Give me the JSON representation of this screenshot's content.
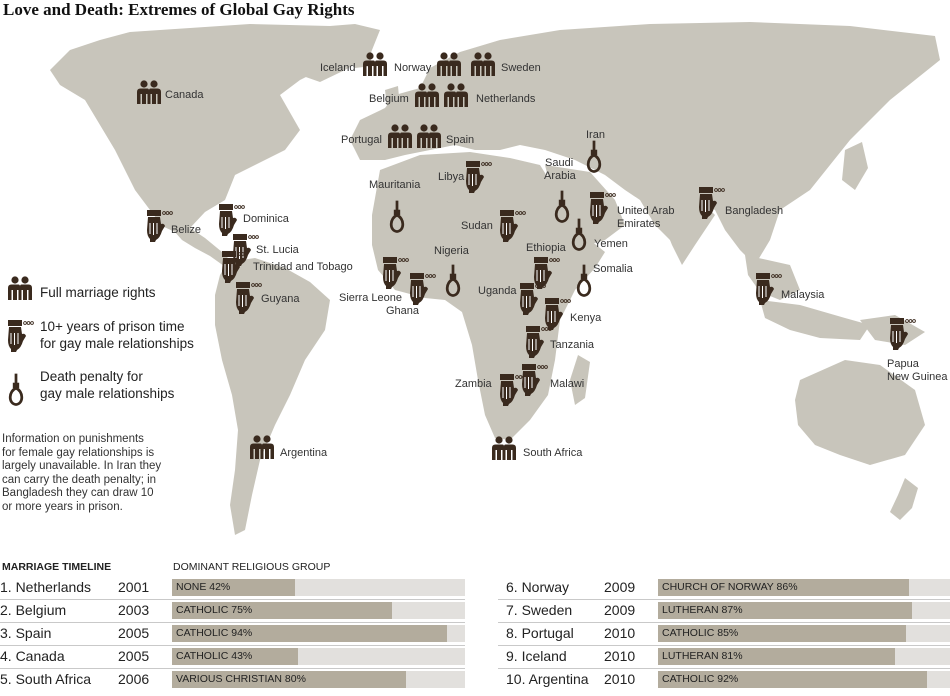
{
  "title": "Love and Death: Extremes of Global Gay Rights",
  "colors": {
    "land": "#c8c5bb",
    "icon": "#3a2a1e",
    "bar_fill": "#b3ac9d",
    "bar_track": "#e2e0dd"
  },
  "map": {
    "countries": [
      {
        "name": "Canada",
        "status": "marriage"
      },
      {
        "name": "Iceland",
        "status": "marriage"
      },
      {
        "name": "Norway",
        "status": "marriage"
      },
      {
        "name": "Sweden",
        "status": "marriage"
      },
      {
        "name": "Belgium",
        "status": "marriage"
      },
      {
        "name": "Netherlands",
        "status": "marriage"
      },
      {
        "name": "Portugal",
        "status": "marriage"
      },
      {
        "name": "Spain",
        "status": "marriage"
      },
      {
        "name": "Argentina",
        "status": "marriage"
      },
      {
        "name": "South Africa",
        "status": "marriage"
      },
      {
        "name": "Iran",
        "status": "death"
      },
      {
        "name": "Saudi Arabia",
        "status": "death"
      },
      {
        "name": "Mauritania",
        "status": "death"
      },
      {
        "name": "Yemen",
        "status": "death"
      },
      {
        "name": "Nigeria",
        "status": "death"
      },
      {
        "name": "Somalia",
        "status": "death"
      },
      {
        "name": "Libya",
        "status": "prison"
      },
      {
        "name": "United Arab Emirates",
        "status": "prison"
      },
      {
        "name": "Bangladesh",
        "status": "prison"
      },
      {
        "name": "Belize",
        "status": "prison"
      },
      {
        "name": "Dominica",
        "status": "prison"
      },
      {
        "name": "St. Lucia",
        "status": "prison"
      },
      {
        "name": "Trinidad and Tobago",
        "status": "prison"
      },
      {
        "name": "Guyana",
        "status": "prison"
      },
      {
        "name": "Sudan",
        "status": "prison"
      },
      {
        "name": "Ethiopia",
        "status": "prison"
      },
      {
        "name": "Sierra Leone",
        "status": "prison"
      },
      {
        "name": "Ghana",
        "status": "prison"
      },
      {
        "name": "Uganda",
        "status": "prison"
      },
      {
        "name": "Kenya",
        "status": "prison"
      },
      {
        "name": "Tanzania",
        "status": "prison"
      },
      {
        "name": "Zambia",
        "status": "prison"
      },
      {
        "name": "Malawi",
        "status": "prison"
      },
      {
        "name": "Malaysia",
        "status": "prison"
      },
      {
        "name": "Papua New Guinea",
        "status": "prison"
      }
    ],
    "labels": {
      "canada": "Canada",
      "iceland": "Iceland",
      "norway": "Norway",
      "sweden": "Sweden",
      "belgium": "Belgium",
      "netherlands": "Netherlands",
      "portugal": "Portugal",
      "spain": "Spain",
      "iran": "Iran",
      "saudi_1": "Saudi",
      "saudi_2": "Arabia",
      "mauritania": "Mauritania",
      "libya": "Libya",
      "uae_1": "United Arab",
      "uae_2": "Emirates",
      "bangladesh": "Bangladesh",
      "belize": "Belize",
      "dominica": "Dominica",
      "st_lucia": "St. Lucia",
      "trinidad": "Trinidad and Tobago",
      "guyana": "Guyana",
      "sudan": "Sudan",
      "yemen": "Yemen",
      "nigeria": "Nigeria",
      "ethiopia": "Ethiopia",
      "somalia": "Somalia",
      "sierra_leone": "Sierra Leone",
      "ghana": "Ghana",
      "uganda": "Uganda",
      "kenya": "Kenya",
      "tanzania": "Tanzania",
      "zambia": "Zambia",
      "malawi": "Malawi",
      "malaysia": "Malaysia",
      "png_1": "Papua",
      "png_2": "New Guinea",
      "argentina": "Argentina",
      "south_africa": "South Africa"
    }
  },
  "legend": {
    "marriage": "Full marriage rights",
    "prison_1": "10+ years of prison time",
    "prison_2": "for gay male relationships",
    "death_1": "Death penalty for",
    "death_2": "gay male relationships"
  },
  "note": [
    "Information on punishments",
    "for female gay relationships is",
    "largely unavailable. In Iran they",
    "can carry the death penalty; in",
    "Bangladesh they can draw 10",
    "or more years in prison."
  ],
  "timeline": {
    "heading": "MARRIAGE TIMELINE",
    "religion_heading": "DOMINANT RELIGIOUS GROUP",
    "rows": [
      {
        "label": "1. Netherlands",
        "year": "2001",
        "group": "NONE 42%",
        "percent": 42
      },
      {
        "label": "2. Belgium",
        "year": "2003",
        "group": "CATHOLIC 75%",
        "percent": 75
      },
      {
        "label": "3. Spain",
        "year": "2005",
        "group": "CATHOLIC 94%",
        "percent": 94
      },
      {
        "label": "4. Canada",
        "year": "2005",
        "group": "CATHOLIC 43%",
        "percent": 43
      },
      {
        "label": "5. South Africa",
        "year": "2006",
        "group": "VARIOUS CHRISTIAN 80%",
        "percent": 80
      },
      {
        "label": "6. Norway",
        "year": "2009",
        "group": "CHURCH OF NORWAY 86%",
        "percent": 86
      },
      {
        "label": "7. Sweden",
        "year": "2009",
        "group": "LUTHERAN 87%",
        "percent": 87
      },
      {
        "label": "8. Portugal",
        "year": "2010",
        "group": "CATHOLIC 85%",
        "percent": 85
      },
      {
        "label": "9. Iceland",
        "year": "2010",
        "group": "LUTHERAN 81%",
        "percent": 81
      },
      {
        "label": "10. Argentina",
        "year": "2010",
        "group": "CATHOLIC 92%",
        "percent": 92
      }
    ]
  }
}
